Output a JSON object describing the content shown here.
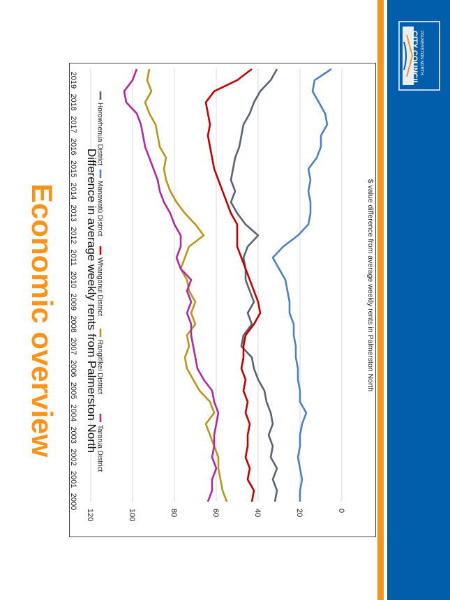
{
  "slide": {
    "title": "Economic overview",
    "logo_line1": "PALMERSTON NORTH",
    "logo_line2": "CITY COUNCIL",
    "colors": {
      "orange": "#f7941d",
      "blue": "#005eaa"
    }
  },
  "chart_data": {
    "type": "line",
    "title": "Difference in average weekly rents from Palmerston North",
    "xlabel": "",
    "ylabel": "$ value difference from average weekly rents in Palmerston North",
    "xlim": [
      2000,
      2019.5
    ],
    "ylim": [
      0,
      120
    ],
    "y_ticks": [
      0,
      20,
      40,
      60,
      80,
      100,
      120
    ],
    "x_ticks": [
      2000,
      2001,
      2002,
      2003,
      2004,
      2005,
      2006,
      2007,
      2008,
      2009,
      2010,
      2011,
      2012,
      2013,
      2014,
      2015,
      2016,
      2017,
      2018,
      2019
    ],
    "grid": true,
    "legend_position": "top",
    "series": [
      {
        "name": "Horowhenua District",
        "color": "#5b6270",
        "x": [
          2000,
          2000.5,
          2001,
          2001.5,
          2002,
          2002.5,
          2003,
          2003.5,
          2004,
          2004.5,
          2005,
          2005.5,
          2006,
          2006.5,
          2007,
          2007.5,
          2008,
          2008.5,
          2009,
          2009.5,
          2010,
          2010.5,
          2011,
          2011.5,
          2012,
          2012.5,
          2013,
          2013.5,
          2014,
          2014.5,
          2015,
          2015.5,
          2016,
          2016.5,
          2017,
          2017.5,
          2018,
          2018.5,
          2019,
          2019.5
        ],
        "values": [
          32,
          31,
          33,
          31,
          34,
          33,
          35,
          33,
          34,
          36,
          37,
          40,
          42,
          43,
          48,
          47,
          43,
          45,
          42,
          44,
          46,
          46,
          47,
          45,
          40,
          46,
          50,
          53,
          51,
          53,
          52,
          51,
          49,
          48,
          47,
          44,
          42,
          39,
          34,
          31
        ]
      },
      {
        "name": "Manawatū District",
        "color": "#4f81bd",
        "x": [
          2000,
          2000.5,
          2001,
          2001.5,
          2002,
          2002.5,
          2003,
          2003.5,
          2004,
          2004.5,
          2005,
          2005.5,
          2006,
          2006.5,
          2007,
          2007.5,
          2008,
          2008.5,
          2009,
          2009.5,
          2010,
          2010.5,
          2011,
          2011.5,
          2012,
          2012.5,
          2013,
          2013.5,
          2014,
          2014.5,
          2015,
          2015.5,
          2016,
          2016.5,
          2017,
          2017.5,
          2018,
          2018.5,
          2019,
          2019.5
        ],
        "values": [
          20,
          20,
          19,
          20,
          21,
          20,
          20,
          19,
          17,
          20,
          20,
          21,
          21,
          22,
          22,
          23,
          23,
          25,
          25,
          26,
          27,
          30,
          33,
          28,
          21,
          16,
          15,
          15,
          16,
          15,
          16,
          12,
          10,
          10,
          7,
          8,
          11,
          14,
          13,
          5
        ]
      },
      {
        "name": "Whanganui District",
        "color": "#c00000",
        "x": [
          2000,
          2000.5,
          2001,
          2001.5,
          2002,
          2002.5,
          2003,
          2003.5,
          2004,
          2004.5,
          2005,
          2005.5,
          2006,
          2006.5,
          2007,
          2007.5,
          2008,
          2008.5,
          2009,
          2009.5,
          2010,
          2010.5,
          2011,
          2011.5,
          2012,
          2012.5,
          2013,
          2013.5,
          2014,
          2014.5,
          2015,
          2015.5,
          2016,
          2016.5,
          2017,
          2017.5,
          2018,
          2018.5,
          2019,
          2019.5
        ],
        "values": [
          43,
          42,
          45,
          44,
          46,
          45,
          45,
          44,
          46,
          45,
          47,
          46,
          48,
          47,
          47,
          46,
          42,
          39,
          40,
          42,
          44,
          46,
          48,
          50,
          50,
          50,
          53,
          55,
          57,
          59,
          61,
          62,
          63,
          64,
          63,
          64,
          65,
          61,
          50,
          43
        ]
      },
      {
        "name": "Rangitīkei District",
        "color": "#b8961e",
        "x": [
          2000,
          2000.5,
          2001,
          2001.5,
          2002,
          2002.5,
          2003,
          2003.5,
          2004,
          2004.5,
          2005,
          2005.5,
          2006,
          2006.5,
          2007,
          2007.5,
          2008,
          2008.5,
          2009,
          2009.5,
          2010,
          2010.5,
          2011,
          2011.5,
          2012,
          2012.5,
          2013,
          2013.5,
          2014,
          2014.5,
          2015,
          2015.5,
          2016,
          2016.5,
          2017,
          2017.5,
          2018,
          2018.5,
          2019,
          2019.5
        ],
        "values": [
          55,
          57,
          58,
          59,
          59,
          61,
          63,
          65,
          61,
          63,
          68,
          71,
          74,
          75,
          73,
          74,
          70,
          72,
          70,
          73,
          74,
          77,
          75,
          73,
          66,
          70,
          75,
          79,
          82,
          84,
          85,
          84,
          87,
          88,
          89,
          92,
          94,
          91,
          93,
          92
        ]
      },
      {
        "name": "Tararua District",
        "color": "#b02a9c",
        "x": [
          2000,
          2000.5,
          2001,
          2001.5,
          2002,
          2002.5,
          2003,
          2003.5,
          2004,
          2004.5,
          2005,
          2005.5,
          2006,
          2006.5,
          2007,
          2007.5,
          2008,
          2008.5,
          2009,
          2009.5,
          2010,
          2010.5,
          2011,
          2011.5,
          2012,
          2012.5,
          2013,
          2013.5,
          2014,
          2014.5,
          2015,
          2015.5,
          2016,
          2016.5,
          2017,
          2017.5,
          2018,
          2018.5,
          2019,
          2019.5
        ],
        "values": [
          64,
          62,
          62,
          60,
          62,
          61,
          61,
          60,
          59,
          61,
          62,
          66,
          69,
          70,
          71,
          72,
          72,
          74,
          72,
          74,
          72,
          77,
          79,
          77,
          77,
          80,
          82,
          85,
          87,
          88,
          90,
          92,
          94,
          95,
          96,
          98,
          103,
          104,
          100,
          98
        ]
      }
    ]
  }
}
